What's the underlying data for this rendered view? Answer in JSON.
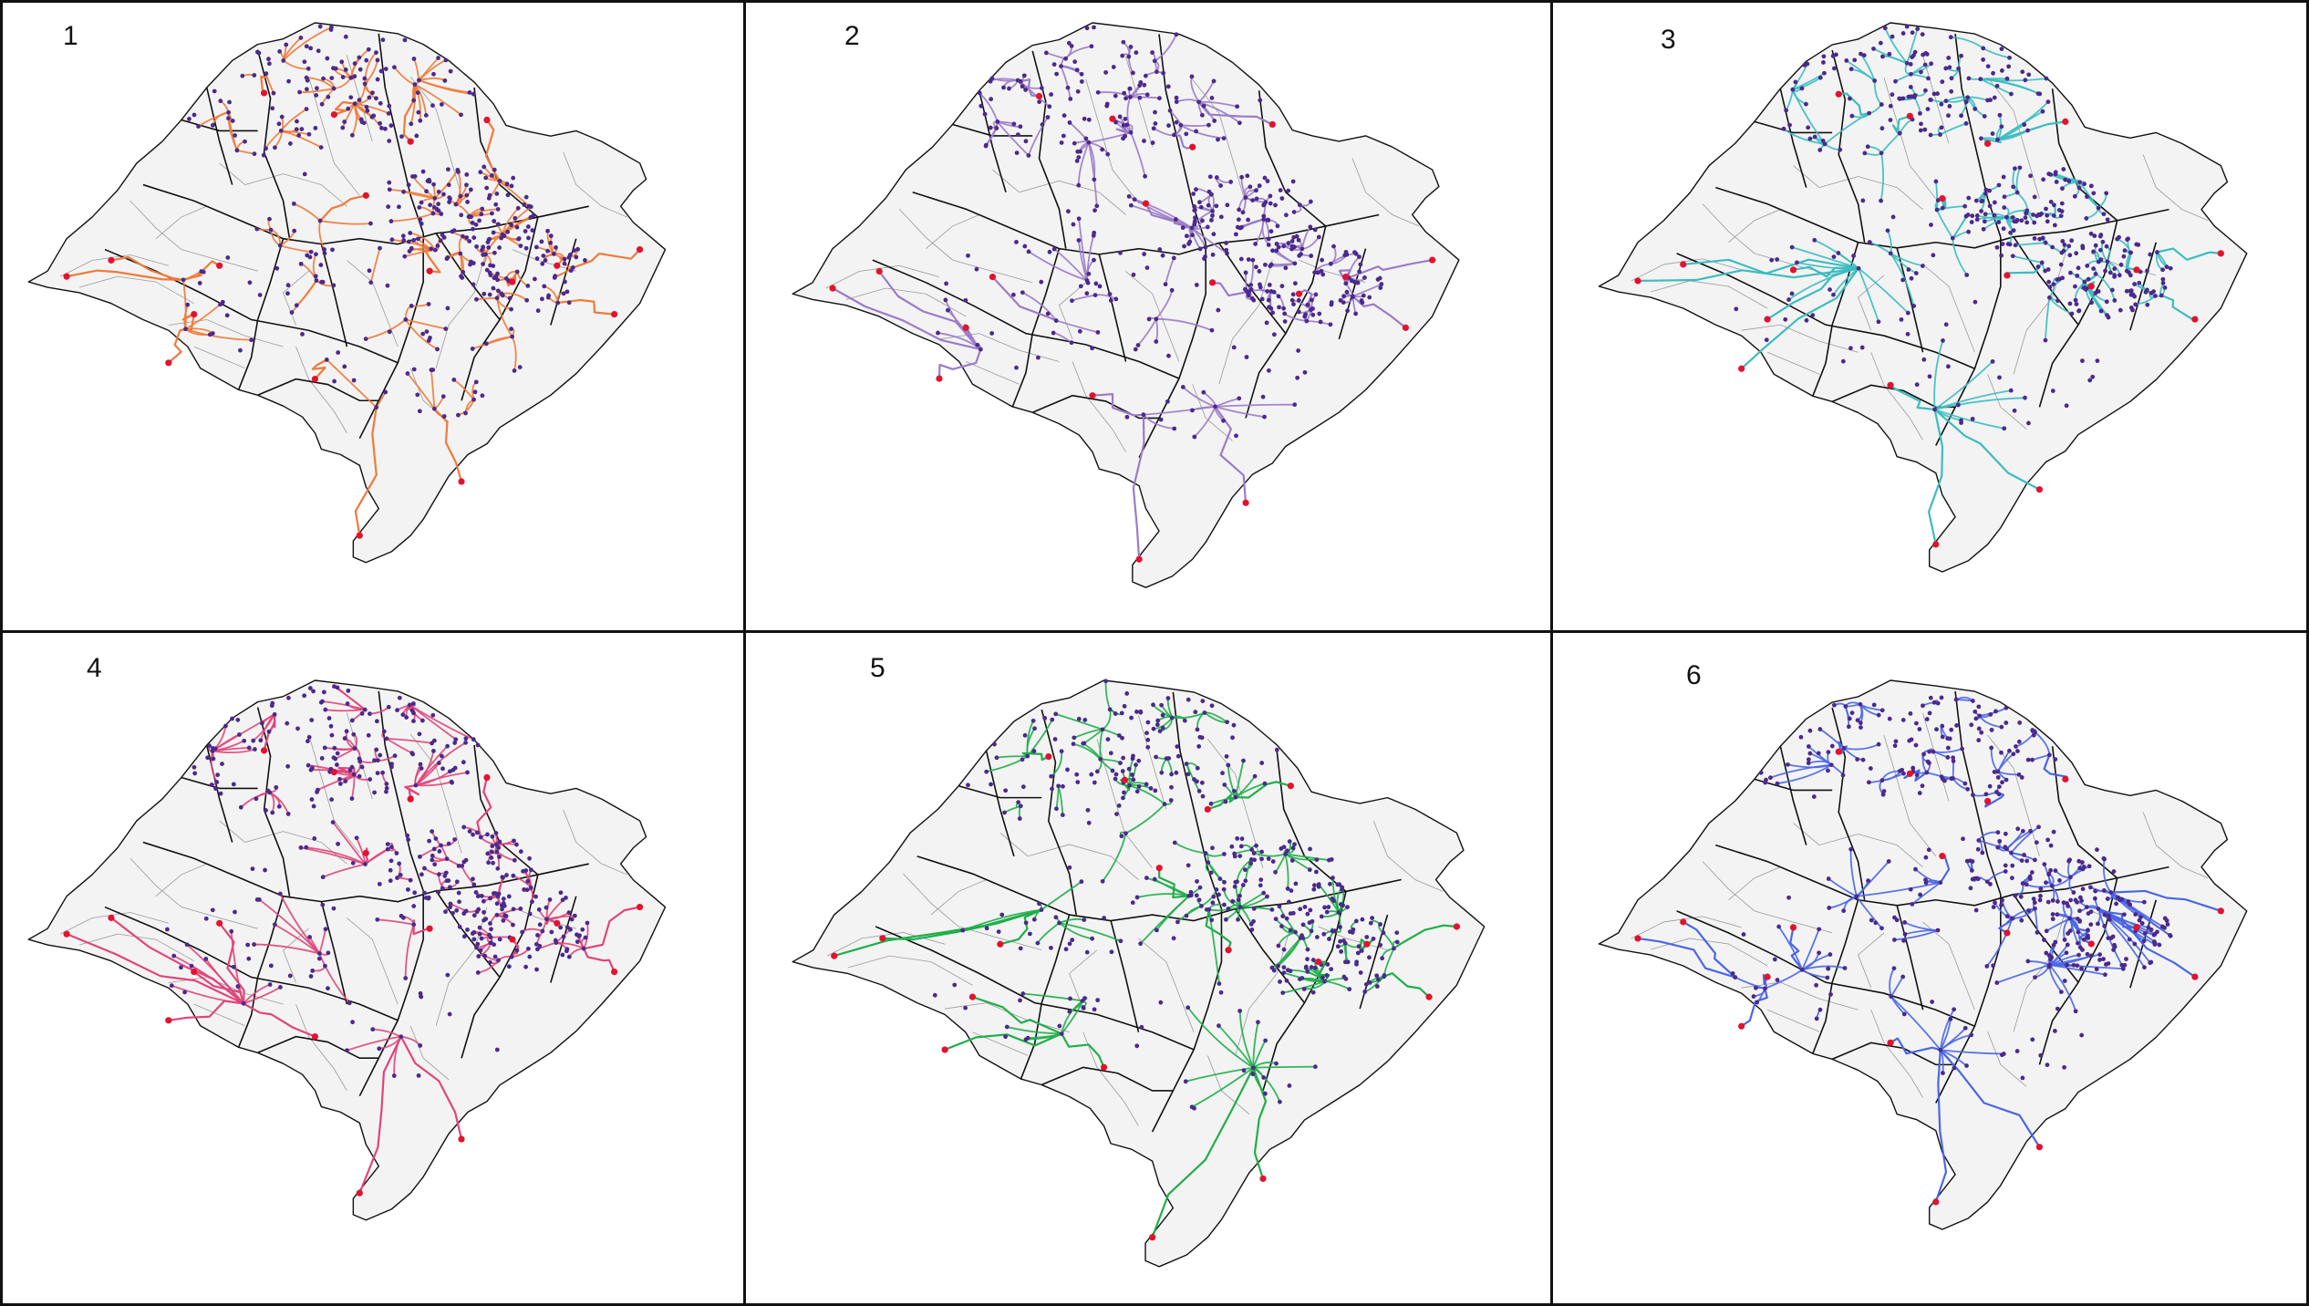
{
  "figure": {
    "panels": [
      {
        "number": "1",
        "route_color": "#f07a3a"
      },
      {
        "number": "2",
        "route_color": "#9a7cc8"
      },
      {
        "number": "3",
        "route_color": "#3bbcc0"
      },
      {
        "number": "4",
        "route_color": "#e0457a"
      },
      {
        "number": "5",
        "route_color": "#1fae4a"
      },
      {
        "number": "6",
        "route_color": "#4a66e6"
      }
    ],
    "colors": {
      "state_fill": "#f3f3f3",
      "region_border": "#111111",
      "municipal_border": "#9a9a9a",
      "node_point": "#4b2a8c",
      "hub_point": "#e3122e"
    }
  }
}
